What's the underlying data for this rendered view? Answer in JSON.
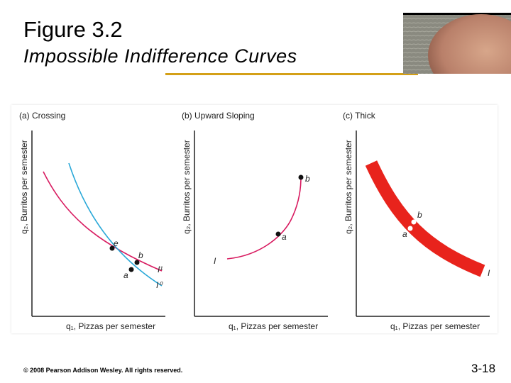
{
  "header": {
    "title": "Figure 3.2",
    "subtitle": "Impossible Indifference Curves"
  },
  "panels": [
    {
      "heading": "(a) Crossing",
      "y_axis": "q₂, Burritos per semester",
      "x_axis": "q₁, Pizzas per semester",
      "points": [
        "e",
        "b",
        "a"
      ],
      "curves": [
        "I¹",
        "I⁰"
      ]
    },
    {
      "heading": "(b) Upward Sloping",
      "y_axis": "q₂, Burritos per semester",
      "x_axis": "q₁, Pizzas per semester",
      "points": [
        "b",
        "a"
      ],
      "curves": [
        "I"
      ]
    },
    {
      "heading": "(c) Thick",
      "y_axis": "q₂, Burritos per semester",
      "x_axis": "q₁, Pizzas per semester",
      "points": [
        "b",
        "a"
      ],
      "curves": [
        "I"
      ]
    }
  ],
  "colors": {
    "accent_rule": "#d4a017",
    "curve_blue": "#2aa8d8",
    "curve_pink": "#d81b60",
    "thick_red": "#e8231c"
  },
  "footer": {
    "copyright": "© 2008 Pearson Addison Wesley. All rights reserved.",
    "page": "3-18"
  }
}
